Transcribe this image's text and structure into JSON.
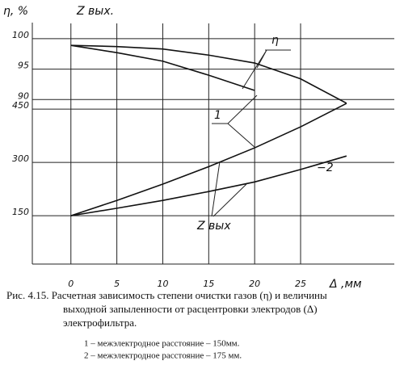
{
  "chart_data": {
    "type": "line",
    "y_label": "η, %",
    "y2_label": "Z вых.",
    "x_label": "Δ ,мм",
    "x": [
      0,
      5,
      10,
      15,
      20,
      25,
      30
    ],
    "xlim": [
      -4.2,
      35.2
    ],
    "xticks": [
      0,
      5,
      10,
      15,
      20,
      25
    ],
    "ylim": [
      63,
      102.5
    ],
    "yticks": [
      100,
      95,
      90
    ],
    "y2lim": [
      14,
      691
    ],
    "y2ticks": [
      450,
      300,
      150
    ],
    "grid": true,
    "series": [
      {
        "color": "#111",
        "values": [
          98.9,
          98.7,
          98.3,
          97.3,
          96.0,
          93.4,
          89.4
        ]
      },
      {
        "color": "#111",
        "values": [
          98.9,
          97.7,
          96.3,
          94.0,
          91.5,
          null,
          null
        ]
      },
      {
        "color": "#111",
        "axis": "y2",
        "values": [
          150,
          193,
          239,
          288,
          341,
          400,
          466
        ]
      },
      {
        "color": "#111",
        "axis": "y2",
        "values": [
          150,
          171,
          193,
          218,
          245,
          280,
          318
        ]
      }
    ],
    "annotations": [
      "η",
      "1",
      "−2",
      "Z вых"
    ],
    "caption": [
      "Рис. 4.15. Расчетная зависимость степени очистки газов (η) и величины",
      "выходной запыленности от расцентровки электродов (Δ)",
      "электрофильтра."
    ],
    "notes": [
      "1 – межэлектродное расстояние – 150мм.",
      "2 – межэлектродное расстояние – 175 мм."
    ]
  }
}
